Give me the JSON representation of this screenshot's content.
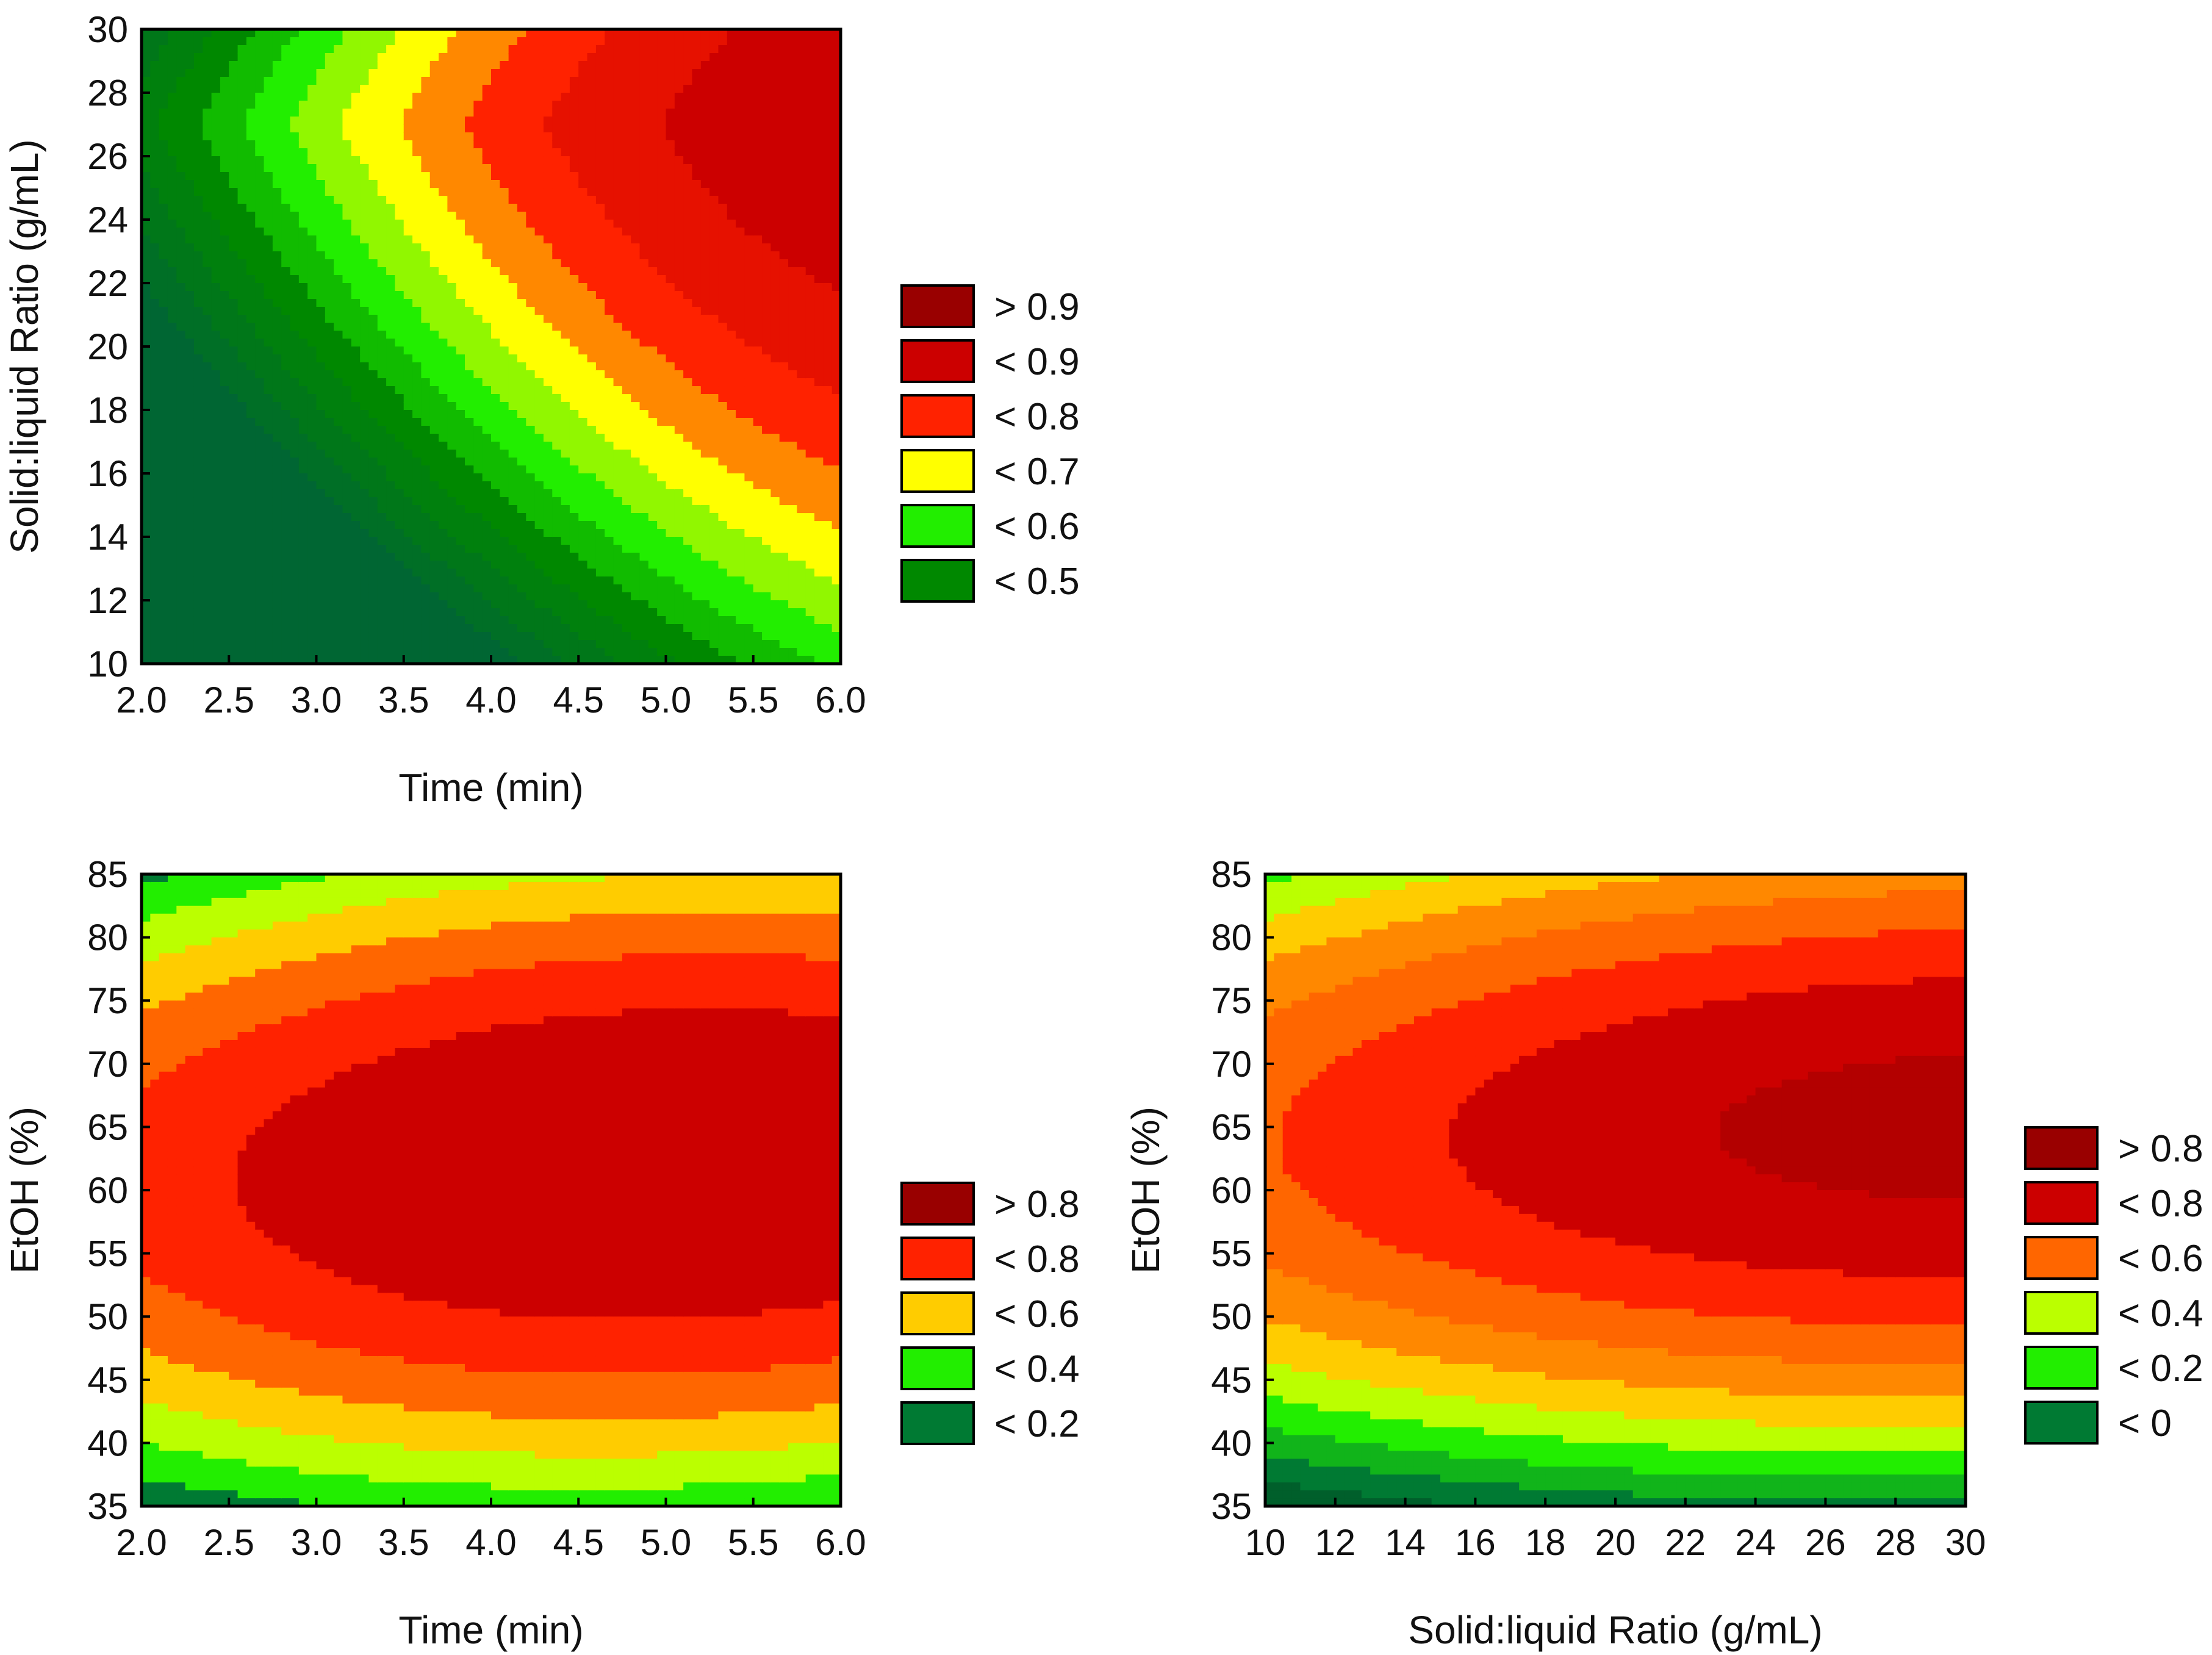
{
  "chart_data": [
    {
      "type": "contour",
      "id": "panel-a",
      "x": {
        "label": "Time (min)",
        "range": [
          2.0,
          6.0
        ],
        "ticks": [
          2.0,
          2.5,
          3.0,
          3.5,
          4.0,
          4.5,
          5.0,
          5.5,
          6.0
        ],
        "tick_labels": [
          "2.0",
          "2.5",
          "3.0",
          "3.5",
          "4.0",
          "4.5",
          "5.0",
          "5.5",
          "6.0"
        ]
      },
      "y": {
        "label": "Solid:liquid Ratio (g/mL)",
        "range": [
          10,
          30
        ],
        "ticks": [
          10,
          12,
          14,
          16,
          18,
          20,
          22,
          24,
          26,
          28,
          30
        ],
        "tick_labels": [
          "10",
          "12",
          "14",
          "16",
          "18",
          "20",
          "22",
          "24",
          "26",
          "28",
          "30"
        ]
      },
      "model": {
        "form": "2d_quadratic",
        "b0": 0.1,
        "b1": 0.18,
        "b2": 0.05,
        "b11": -0.015,
        "b22": -0.0009,
        "b12": 0.0,
        "opt_x": 6.0,
        "opt_y": 27.5
      },
      "levels": [
        0.0,
        0.05,
        0.1,
        0.15,
        0.2,
        0.25,
        0.3,
        0.35,
        0.4,
        0.45,
        0.5,
        0.55,
        0.6,
        0.65,
        0.7,
        0.75,
        0.8,
        0.85,
        0.9,
        0.95
      ],
      "legend": [
        {
          "label": "> 0.9",
          "color": "#990000"
        },
        {
          "label": "< 0.9",
          "color": "#cc0000"
        },
        {
          "label": "< 0.8",
          "color": "#ff2200"
        },
        {
          "label": "< 0.7",
          "color": "#ffff00"
        },
        {
          "label": "< 0.6",
          "color": "#22ee00"
        },
        {
          "label": "< 0.5",
          "color": "#008800"
        }
      ],
      "color_stops": [
        [
          0.3,
          "#006633"
        ],
        [
          0.5,
          "#008800"
        ],
        [
          0.6,
          "#22ee00"
        ],
        [
          0.7,
          "#ffff00"
        ],
        [
          0.75,
          "#ff8800"
        ],
        [
          0.8,
          "#ff2200"
        ],
        [
          0.9,
          "#cc0000"
        ],
        [
          1.0,
          "#990000"
        ]
      ],
      "max_value": 0.95
    },
    {
      "type": "contour",
      "id": "panel-b",
      "x": {
        "label": "Time (min)",
        "range": [
          2.0,
          6.0
        ],
        "ticks": [
          2.0,
          2.5,
          3.0,
          3.5,
          4.0,
          4.5,
          5.0,
          5.5,
          6.0
        ],
        "tick_labels": [
          "2.0",
          "2.5",
          "3.0",
          "3.5",
          "4.0",
          "4.5",
          "5.0",
          "5.5",
          "6.0"
        ]
      },
      "y": {
        "label": "EtOH (%)",
        "range": [
          35,
          85
        ],
        "ticks": [
          35,
          40,
          45,
          50,
          55,
          60,
          65,
          70,
          75,
          80,
          85
        ],
        "tick_labels": [
          "35",
          "40",
          "45",
          "50",
          "55",
          "60",
          "65",
          "70",
          "75",
          "80",
          "85"
        ]
      },
      "model": {
        "form": "2d_quadratic",
        "b0": 0.92,
        "b1": 0.0,
        "b2": 0.0,
        "b11": -0.02,
        "b22": -0.0008,
        "b12": 0.0007,
        "opt_x": 5.0,
        "opt_y": 62.0
      },
      "levels": [
        -0.2,
        -0.1,
        0.0,
        0.1,
        0.2,
        0.3,
        0.4,
        0.5,
        0.6,
        0.7,
        0.8
      ],
      "legend": [
        {
          "label": "> 0.8",
          "color": "#990000"
        },
        {
          "label": "< 0.8",
          "color": "#ff2200"
        },
        {
          "label": "< 0.6",
          "color": "#ffcc00"
        },
        {
          "label": "< 0.4",
          "color": "#22ee00"
        },
        {
          "label": "< 0.2",
          "color": "#007a33"
        }
      ],
      "color_stops": [
        [
          0.0,
          "#006633"
        ],
        [
          0.2,
          "#007a33"
        ],
        [
          0.3,
          "#22ee00"
        ],
        [
          0.4,
          "#bbff00"
        ],
        [
          0.5,
          "#ffcc00"
        ],
        [
          0.6,
          "#ff6600"
        ],
        [
          0.7,
          "#ff2200"
        ],
        [
          0.8,
          "#cc0000"
        ],
        [
          1.0,
          "#990000"
        ]
      ],
      "max_value": 0.92
    },
    {
      "type": "contour",
      "id": "panel-c",
      "x": {
        "label": "Solid:liquid Ratio (g/mL)",
        "range": [
          10,
          30
        ],
        "ticks": [
          10,
          12,
          14,
          16,
          18,
          20,
          22,
          24,
          26,
          28,
          30
        ],
        "tick_labels": [
          "10",
          "12",
          "14",
          "16",
          "18",
          "20",
          "22",
          "24",
          "26",
          "28",
          "30"
        ]
      },
      "y": {
        "label": "EtOH (%)",
        "range": [
          35,
          85
        ],
        "ticks": [
          35,
          40,
          45,
          50,
          55,
          60,
          65,
          70,
          75,
          80,
          85
        ],
        "tick_labels": [
          "35",
          "40",
          "45",
          "50",
          "55",
          "60",
          "65",
          "70",
          "75",
          "80",
          "85"
        ]
      },
      "model": {
        "form": "2d_quadratic",
        "b0": 0.93,
        "b1": 0.0,
        "b2": 0.0,
        "b11": -0.0006,
        "b22": -0.00095,
        "b12": 0.0001,
        "opt_x": 30.0,
        "opt_y": 65.0
      },
      "levels": [
        -0.2,
        -0.1,
        0.0,
        0.1,
        0.2,
        0.3,
        0.4,
        0.5,
        0.6,
        0.7,
        0.8,
        0.9
      ],
      "legend": [
        {
          "label": "> 0.8",
          "color": "#990000"
        },
        {
          "label": "< 0.8",
          "color": "#cc0000"
        },
        {
          "label": "< 0.6",
          "color": "#ff6600"
        },
        {
          "label": "< 0.4",
          "color": "#bbff00"
        },
        {
          "label": "< 0.2",
          "color": "#22ee00"
        },
        {
          "label": "< 0",
          "color": "#007a33"
        }
      ],
      "color_stops": [
        [
          -0.2,
          "#004422"
        ],
        [
          0.0,
          "#007a33"
        ],
        [
          0.2,
          "#22ee00"
        ],
        [
          0.3,
          "#bbff00"
        ],
        [
          0.4,
          "#ffcc00"
        ],
        [
          0.5,
          "#ff8800"
        ],
        [
          0.6,
          "#ff6600"
        ],
        [
          0.7,
          "#ff2200"
        ],
        [
          0.8,
          "#cc0000"
        ],
        [
          1.0,
          "#990000"
        ]
      ],
      "max_value": 0.93
    }
  ]
}
